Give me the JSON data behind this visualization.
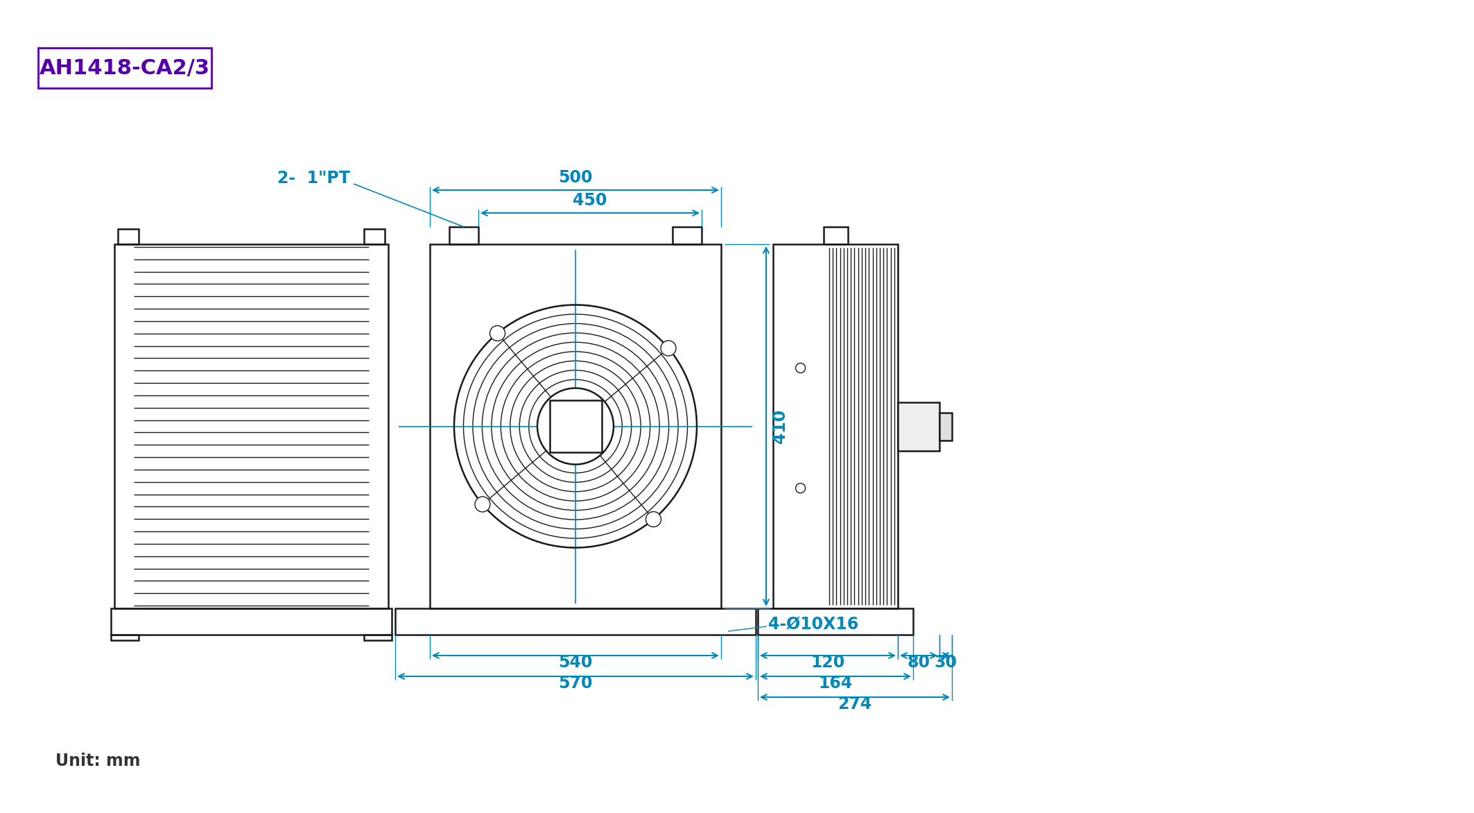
{
  "title": "AH1418-CA2/3",
  "title_color": "#5500aa",
  "title_border_color": "#5500aa",
  "dim_color": "#0088bb",
  "drawing_color": "#1a1a1a",
  "unit_text": "Unit: mm",
  "label_pt": "2-  1\"PT",
  "label_hole": "4-Ø10X16",
  "dim_500": "500",
  "dim_450": "450",
  "dim_410": "410",
  "dim_540": "540",
  "dim_570": "570",
  "dim_120": "120",
  "dim_164": "164",
  "dim_80": "80",
  "dim_30": "30",
  "dim_274": "274",
  "bg_color": "#ffffff"
}
